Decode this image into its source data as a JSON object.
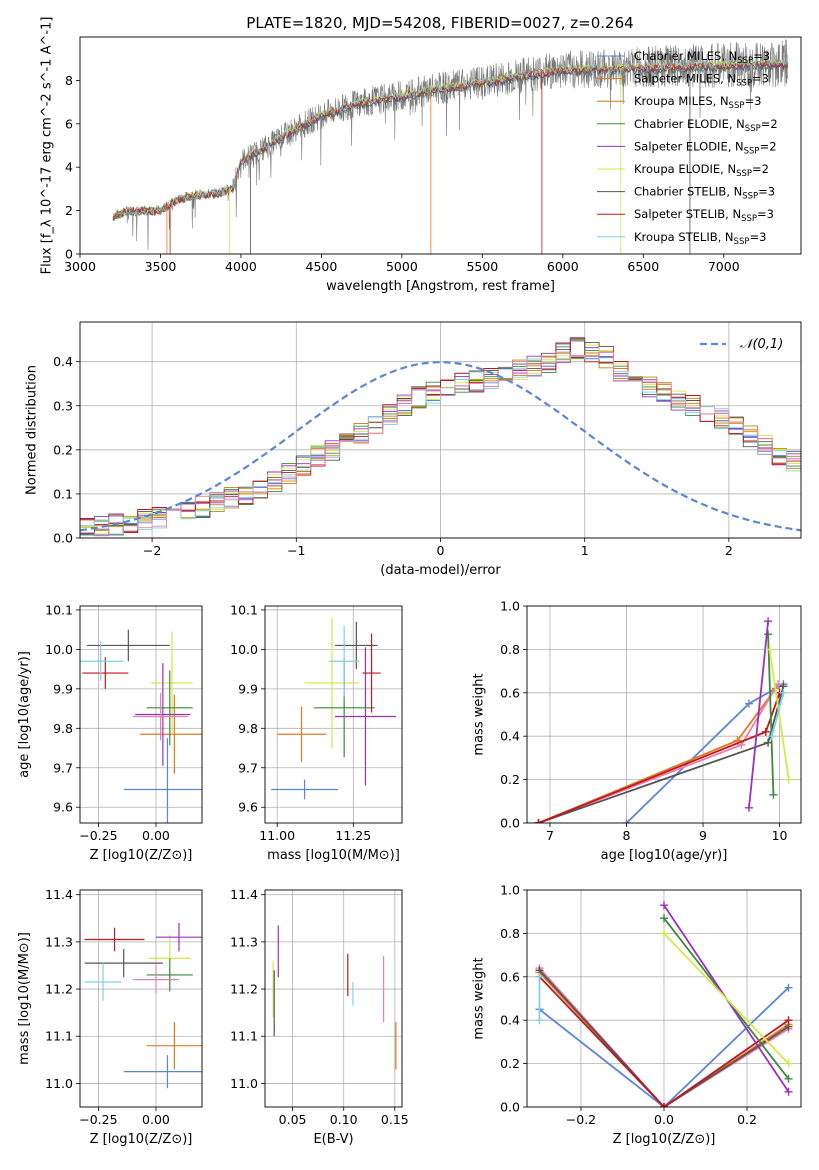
{
  "figure_title": "PLATE=1820, MJD=54208, FIBERID=0027, z=0.264",
  "colors": {
    "Chabrier MILES": "#5b86d6",
    "Salpeter MILES": "#e3781e",
    "Kroupa MILES": "#b8860b",
    "Chabrier ELODIE": "#3c8a3c",
    "Salpeter ELODIE": "#9b30c0",
    "Kroupa ELODIE": "#d4e84a",
    "Chabrier STELIB": "#555555",
    "Salpeter STELIB": "#c0181e",
    "Kroupa STELIB": "#7fd3e0",
    "extra": "#e87fb0"
  },
  "legend_labels": [
    "Chabrier MILES, N_SSP=3",
    "Salpeter MILES, N_SSP=3",
    "Kroupa MILES, N_SSP=3",
    "Chabrier ELODIE, N_SSP=2",
    "Salpeter ELODIE, N_SSP=2",
    "Kroupa ELODIE, N_SSP=2",
    "Chabrier STELIB, N_SSP=3",
    "Salpeter STELIB, N_SSP=3",
    "Kroupa STELIB, N_SSP=3"
  ],
  "chart_data": [
    {
      "id": "spectrum",
      "type": "line",
      "xlabel": "wavelength [Angstrom, rest frame]",
      "ylabel": "Flux [f_λ 10^-17 erg cm^-2 s^-1 A^-1]",
      "xlim": [
        3000,
        7480
      ],
      "ylim": [
        0,
        10
      ],
      "xticks": [
        3000,
        3500,
        4000,
        4500,
        5000,
        5500,
        6000,
        6500,
        7000
      ],
      "yticks": [
        0,
        2,
        4,
        6,
        8
      ],
      "continuum": [
        [
          3200,
          1.7
        ],
        [
          3300,
          2.0
        ],
        [
          3500,
          2.0
        ],
        [
          3600,
          2.5
        ],
        [
          3700,
          2.7
        ],
        [
          3850,
          2.8
        ],
        [
          3950,
          3.0
        ],
        [
          4000,
          4.3
        ],
        [
          4100,
          4.7
        ],
        [
          4300,
          5.6
        ],
        [
          4500,
          6.4
        ],
        [
          4700,
          6.9
        ],
        [
          5000,
          7.3
        ],
        [
          5200,
          7.6
        ],
        [
          5500,
          7.9
        ],
        [
          5800,
          8.3
        ],
        [
          6000,
          8.5
        ],
        [
          6500,
          8.6
        ],
        [
          7000,
          8.7
        ],
        [
          7400,
          8.8
        ]
      ],
      "legend_position": "upper right",
      "legend": [
        "Chabrier MILES, N_SSP=3",
        "Salpeter MILES, N_SSP=3",
        "Kroupa MILES, N_SSP=3",
        "Chabrier ELODIE, N_SSP=2",
        "Salpeter ELODIE, N_SSP=2",
        "Kroupa ELODIE, N_SSP=2",
        "Chabrier STELIB, N_SSP=3",
        "Salpeter STELIB, N_SSP=3",
        "Kroupa STELIB, N_SSP=3"
      ]
    },
    {
      "id": "residual-histogram",
      "type": "line",
      "xlabel": "(data-model)/error",
      "ylabel": "Normed distribution",
      "xlim": [
        -2.5,
        2.5
      ],
      "ylim": [
        0,
        0.49
      ],
      "xticks": [
        -2,
        -1,
        0,
        1,
        2
      ],
      "yticks": [
        0.0,
        0.1,
        0.2,
        0.3,
        0.4
      ],
      "grid": true,
      "legend": [
        "N(0,1)"
      ],
      "legend_position": "upper right",
      "bin_width": 0.1,
      "bin_start": -2.5,
      "base_histogram": [
        0.02,
        0.025,
        0.03,
        0.035,
        0.04,
        0.045,
        0.05,
        0.06,
        0.07,
        0.08,
        0.09,
        0.1,
        0.11,
        0.125,
        0.145,
        0.165,
        0.185,
        0.2,
        0.215,
        0.24,
        0.26,
        0.28,
        0.3,
        0.32,
        0.33,
        0.34,
        0.35,
        0.355,
        0.36,
        0.37,
        0.38,
        0.39,
        0.4,
        0.42,
        0.43,
        0.42,
        0.41,
        0.38,
        0.36,
        0.34,
        0.33,
        0.31,
        0.3,
        0.285,
        0.27,
        0.25,
        0.23,
        0.21,
        0.19,
        0.175,
        0.16,
        0.15,
        0.14,
        0.12,
        0.11,
        0.1,
        0.09,
        0.08,
        0.07,
        0.06,
        0.055,
        0.05,
        0.045,
        0.04,
        0.035,
        0.03,
        0.025,
        0.02,
        0.02,
        0.02
      ]
    },
    {
      "id": "age-vs-Z",
      "type": "scatter",
      "xlabel": "Z [log10(Z/Z⊙)]",
      "ylabel": "age [log10(age/yr)]",
      "xlim": [
        -0.33,
        0.2
      ],
      "ylim": [
        9.56,
        10.11
      ],
      "xticks": [
        -0.25,
        0.0
      ],
      "yticks": [
        9.6,
        9.7,
        9.8,
        9.9,
        10.0,
        10.1
      ],
      "grid": true,
      "points": [
        {
          "model": "Chabrier MILES",
          "x": 0.05,
          "xerr": 0.19,
          "y": 9.645,
          "yerr": 0.26
        },
        {
          "model": "Salpeter MILES",
          "x": 0.08,
          "xerr": 0.15,
          "y": 9.785,
          "yerr": 0.2
        },
        {
          "model": "Kroupa ELODIE",
          "x": 0.07,
          "xerr": 0.09,
          "y": 9.915,
          "yerr": 0.26
        },
        {
          "model": "Salpeter ELODIE",
          "x": 0.03,
          "xerr": 0.12,
          "y": 9.835,
          "yerr": 0.26
        },
        {
          "model": "Chabrier ELODIE",
          "x": 0.06,
          "xerr": 0.1,
          "y": 9.852,
          "yerr": 0.19
        },
        {
          "model": "extra",
          "x": 0.02,
          "xerr": 0.12,
          "y": 9.83,
          "yerr": 0.12
        },
        {
          "model": "Chabrier STELIB",
          "x": -0.12,
          "xerr": 0.18,
          "y": 10.01,
          "yerr": 0.08
        },
        {
          "model": "Salpeter STELIB",
          "x": -0.22,
          "xerr": 0.1,
          "y": 9.94,
          "yerr": 0.08
        },
        {
          "model": "Kroupa STELIB",
          "x": -0.24,
          "xerr": 0.1,
          "y": 9.97,
          "yerr": 0.1
        }
      ]
    },
    {
      "id": "age-vs-mass",
      "type": "scatter",
      "xlabel": "mass [log10(M/M⊙)]",
      "ylabel": "",
      "xlim": [
        10.96,
        11.41
      ],
      "ylim": [
        9.56,
        10.11
      ],
      "xticks": [
        11.0,
        11.25
      ],
      "yticks": [
        9.6,
        9.7,
        9.8,
        9.9,
        10.0,
        10.1
      ],
      "grid": true,
      "points": [
        {
          "model": "Chabrier MILES",
          "x": 11.09,
          "xerr": 0.11,
          "y": 9.645,
          "yerr": 0.05
        },
        {
          "model": "Salpeter MILES",
          "x": 11.08,
          "xerr": 0.08,
          "y": 9.785,
          "yerr": 0.14
        },
        {
          "model": "Kroupa ELODIE",
          "x": 11.18,
          "xerr": 0.09,
          "y": 9.915,
          "yerr": 0.33
        },
        {
          "model": "Salpeter ELODIE",
          "x": 11.29,
          "xerr": 0.1,
          "y": 9.83,
          "yerr": 0.35
        },
        {
          "model": "Chabrier ELODIE",
          "x": 11.22,
          "xerr": 0.1,
          "y": 9.852,
          "yerr": 0.25
        },
        {
          "model": "Chabrier STELIB",
          "x": 11.26,
          "xerr": 0.07,
          "y": 10.01,
          "yerr": 0.12
        },
        {
          "model": "Salpeter STELIB",
          "x": 11.31,
          "xerr": 0.03,
          "y": 9.94,
          "yerr": 0.2
        },
        {
          "model": "Kroupa STELIB",
          "x": 11.22,
          "xerr": 0.05,
          "y": 9.97,
          "yerr": 0.18
        }
      ]
    },
    {
      "id": "mass-weight-vs-age",
      "type": "line",
      "xlabel": "age [log10(age/yr)]",
      "ylabel": "mass weight",
      "xlim": [
        6.7,
        10.28
      ],
      "ylim": [
        0,
        1.0
      ],
      "xticks": [
        7,
        8,
        9,
        10
      ],
      "yticks": [
        0.0,
        0.2,
        0.4,
        0.6,
        0.8,
        1.0
      ],
      "grid": true,
      "series": [
        {
          "model": "Chabrier MILES",
          "x": [
            8.0,
            9.6,
            10.05
          ],
          "y": [
            0.0,
            0.55,
            0.64
          ]
        },
        {
          "model": "Salpeter MILES",
          "x": [
            6.85,
            9.45,
            9.95
          ],
          "y": [
            0.0,
            0.38,
            0.62
          ]
        },
        {
          "model": "extra",
          "x": [
            6.85,
            9.5,
            9.98
          ],
          "y": [
            0.0,
            0.36,
            0.64
          ]
        },
        {
          "model": "Chabrier STELIB",
          "x": [
            6.85,
            9.85,
            10.05
          ],
          "y": [
            0.0,
            0.37,
            0.63
          ]
        },
        {
          "model": "Salpeter STELIB",
          "x": [
            6.85,
            9.82,
            10.0
          ],
          "y": [
            0.0,
            0.42,
            0.6
          ]
        },
        {
          "model": "Chabrier ELODIE",
          "x": [
            9.85,
            9.92
          ],
          "y": [
            0.87,
            0.13
          ]
        },
        {
          "model": "Salpeter ELODIE",
          "x": [
            9.6,
            9.85
          ],
          "y": [
            0.07,
            0.93
          ]
        },
        {
          "model": "Kroupa ELODIE",
          "x": [
            9.87,
            10.12
          ],
          "y": [
            0.8,
            0.2
          ]
        },
        {
          "model": "Kroupa STELIB",
          "x": [
            9.9,
            10.05
          ],
          "y": [
            0.4,
            0.6
          ]
        }
      ]
    },
    {
      "id": "mass-vs-Z",
      "type": "scatter",
      "xlabel": "Z [log10(Z/Z⊙)]",
      "ylabel": "mass [log10(M/M⊙)]",
      "xlim": [
        -0.33,
        0.2
      ],
      "ylim": [
        10.95,
        11.41
      ],
      "xticks": [
        -0.25,
        0.0
      ],
      "yticks": [
        11.0,
        11.1,
        11.2,
        11.3,
        11.4
      ],
      "grid": true,
      "points": [
        {
          "model": "Chabrier MILES",
          "x": 0.05,
          "xerr": 0.19,
          "y": 11.025,
          "yerr": 0.07
        },
        {
          "model": "Salpeter MILES",
          "x": 0.08,
          "xerr": 0.12,
          "y": 11.08,
          "yerr": 0.1
        },
        {
          "model": "Kroupa ELODIE",
          "x": 0.06,
          "xerr": 0.09,
          "y": 11.265,
          "yerr": 0.1
        },
        {
          "model": "Salpeter ELODIE",
          "x": 0.1,
          "xerr": 0.1,
          "y": 11.31,
          "yerr": 0.06
        },
        {
          "model": "Chabrier ELODIE",
          "x": 0.06,
          "xerr": 0.1,
          "y": 11.23,
          "yerr": 0.07
        },
        {
          "model": "extra",
          "x": 0.0,
          "xerr": 0.1,
          "y": 11.22,
          "yerr": 0.06
        },
        {
          "model": "Chabrier STELIB",
          "x": -0.14,
          "xerr": 0.17,
          "y": 11.255,
          "yerr": 0.06
        },
        {
          "model": "Salpeter STELIB",
          "x": -0.18,
          "xerr": 0.13,
          "y": 11.305,
          "yerr": 0.05
        },
        {
          "model": "Kroupa STELIB",
          "x": -0.23,
          "xerr": 0.08,
          "y": 11.215,
          "yerr": 0.08
        }
      ]
    },
    {
      "id": "mass-vs-ebv",
      "type": "scatter",
      "xlabel": "E(B-V)",
      "ylabel": "",
      "xlim": [
        0.023,
        0.157
      ],
      "ylim": [
        10.95,
        11.41
      ],
      "xticks": [
        0.05,
        0.1,
        0.15
      ],
      "yticks": [
        11.0,
        11.1,
        11.2,
        11.3,
        11.4
      ],
      "grid": true,
      "points": [
        {
          "model": "Kroupa ELODIE",
          "x": 0.031,
          "y": 11.2,
          "yerr": 0.12
        },
        {
          "model": "Chabrier STELIB",
          "x": 0.032,
          "y": 11.17,
          "yerr": 0.14
        },
        {
          "model": "Salpeter ELODIE",
          "x": 0.036,
          "y": 11.28,
          "yerr": 0.11
        },
        {
          "model": "Salpeter STELIB",
          "x": 0.104,
          "y": 11.23,
          "yerr": 0.09
        },
        {
          "model": "Kroupa STELIB",
          "x": 0.109,
          "y": 11.19,
          "yerr": 0.05
        },
        {
          "model": "extra",
          "x": 0.139,
          "y": 11.2,
          "yerr": 0.14
        },
        {
          "model": "Salpeter MILES",
          "x": 0.151,
          "y": 11.08,
          "yerr": 0.1
        }
      ]
    },
    {
      "id": "mass-weight-vs-Z",
      "type": "line",
      "xlabel": "Z [log10(Z/Z⊙)]",
      "ylabel": "mass weight",
      "xlim": [
        -0.33,
        0.33
      ],
      "ylim": [
        0,
        1.0
      ],
      "xticks": [
        -0.2,
        0.0,
        0.2
      ],
      "yticks": [
        0.0,
        0.2,
        0.4,
        0.6,
        0.8,
        1.0
      ],
      "grid": true,
      "series": [
        {
          "model": "Chabrier MILES",
          "x": [
            -0.3,
            0.0,
            0.3
          ],
          "y": [
            0.45,
            0.0,
            0.55
          ]
        },
        {
          "model": "Salpeter MILES",
          "x": [
            -0.3,
            0.0,
            0.3
          ],
          "y": [
            0.62,
            0.0,
            0.38
          ]
        },
        {
          "model": "extra",
          "x": [
            -0.3,
            0.0,
            0.3
          ],
          "y": [
            0.64,
            0.0,
            0.36
          ]
        },
        {
          "model": "Chabrier STELIB",
          "x": [
            -0.3,
            0.0,
            0.3
          ],
          "y": [
            0.63,
            0.0,
            0.37
          ]
        },
        {
          "model": "Salpeter STELIB",
          "x": [
            -0.3,
            0.0,
            0.3
          ],
          "y": [
            0.6,
            0.0,
            0.4
          ]
        },
        {
          "model": "Kroupa STELIB",
          "x": [
            -0.3,
            -0.3
          ],
          "y": [
            0.6,
            0.4
          ]
        },
        {
          "model": "Chabrier ELODIE",
          "x": [
            0.0,
            0.3
          ],
          "y": [
            0.87,
            0.13
          ]
        },
        {
          "model": "Salpeter ELODIE",
          "x": [
            0.0,
            0.3
          ],
          "y": [
            0.93,
            0.07
          ]
        },
        {
          "model": "Kroupa ELODIE",
          "x": [
            0.0,
            0.3
          ],
          "y": [
            0.8,
            0.2
          ]
        }
      ]
    }
  ]
}
